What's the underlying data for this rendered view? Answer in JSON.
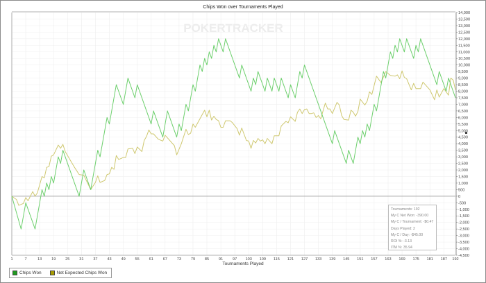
{
  "title": "Chips Won over Tournaments Played",
  "watermark": "POKERTRACKER",
  "chart_data": {
    "type": "line",
    "title": "Chips Won over Tournaments Played",
    "xlabel": "Tournaments Played",
    "ylabel": "",
    "xlim": [
      1,
      192
    ],
    "ylim": [
      -4500,
      14000
    ],
    "grid": true,
    "legend_position": "bottom-left",
    "x_ticks": [
      1,
      7,
      13,
      19,
      25,
      31,
      37,
      43,
      49,
      55,
      61,
      67,
      73,
      79,
      85,
      91,
      97,
      103,
      109,
      115,
      121,
      127,
      133,
      139,
      145,
      151,
      157,
      163,
      169,
      175,
      181,
      187,
      192
    ],
    "y_ticks": [
      "14,000",
      "13,500",
      "13,000",
      "12,500",
      "12,000",
      "11,500",
      "11,000",
      "10,500",
      "10,000",
      "9,500",
      "9,000",
      "8,500",
      "8,000",
      "7,500",
      "7,000",
      "6,500",
      "6,000",
      "5,500",
      "5,000",
      "4,500",
      "4,000",
      "3,500",
      "3,000",
      "2,500",
      "2,000",
      "1,500",
      "1,000",
      "500",
      "0",
      "-500",
      "-1,000",
      "-1,500",
      "-2,000",
      "-2,500",
      "-3,000",
      "-3,500",
      "-4,000",
      "-4,500"
    ],
    "series": [
      {
        "name": "Chips Won",
        "color": "#6ccf6c",
        "legend_color": "#1f9a1f",
        "points": [
          [
            1,
            0
          ],
          [
            5,
            -2500
          ],
          [
            7,
            -500
          ],
          [
            11,
            -2500
          ],
          [
            14,
            500
          ],
          [
            15,
            0
          ],
          [
            16,
            1000
          ],
          [
            17,
            500
          ],
          [
            18,
            1500
          ],
          [
            19,
            1000
          ],
          [
            21,
            3000
          ],
          [
            22,
            2500
          ],
          [
            23,
            3500
          ],
          [
            30,
            0
          ],
          [
            32,
            2000
          ],
          [
            35,
            500
          ],
          [
            38,
            3500
          ],
          [
            39,
            3000
          ],
          [
            42,
            6000
          ],
          [
            43,
            5500
          ],
          [
            46,
            8500
          ],
          [
            49,
            7000
          ],
          [
            51,
            9000
          ],
          [
            54,
            7500
          ],
          [
            55,
            8500
          ],
          [
            61,
            5500
          ],
          [
            62,
            6500
          ],
          [
            66,
            4500
          ],
          [
            68,
            6500
          ],
          [
            72,
            4500
          ],
          [
            73,
            5500
          ],
          [
            74,
            5000
          ],
          [
            76,
            7000
          ],
          [
            77,
            6500
          ],
          [
            79,
            8500
          ],
          [
            80,
            8000
          ],
          [
            82,
            10000
          ],
          [
            83,
            9500
          ],
          [
            84,
            10500
          ],
          [
            85,
            10000
          ],
          [
            86,
            11000
          ],
          [
            87,
            10500
          ],
          [
            88,
            11500
          ],
          [
            89,
            11000
          ],
          [
            90,
            12000
          ],
          [
            92,
            11000
          ],
          [
            93,
            12000
          ],
          [
            99,
            9000
          ],
          [
            100,
            10000
          ],
          [
            104,
            8000
          ],
          [
            105,
            9000
          ],
          [
            106,
            8500
          ],
          [
            107,
            9500
          ],
          [
            110,
            8000
          ],
          [
            111,
            9000
          ],
          [
            113,
            8000
          ],
          [
            114,
            9000
          ],
          [
            116,
            8000
          ],
          [
            117,
            9000
          ],
          [
            120,
            7500
          ],
          [
            121,
            8500
          ],
          [
            123,
            7500
          ],
          [
            125,
            9500
          ],
          [
            126,
            9000
          ],
          [
            127,
            10000
          ],
          [
            139,
            4000
          ],
          [
            140,
            5000
          ],
          [
            145,
            2500
          ],
          [
            146,
            3500
          ],
          [
            148,
            2500
          ],
          [
            150,
            4500
          ],
          [
            151,
            4000
          ],
          [
            152,
            5000
          ],
          [
            153,
            4500
          ],
          [
            154,
            5500
          ],
          [
            155,
            5000
          ],
          [
            157,
            7000
          ],
          [
            158,
            6500
          ],
          [
            161,
            9500
          ],
          [
            162,
            9000
          ],
          [
            164,
            11000
          ],
          [
            165,
            10500
          ],
          [
            166,
            11500
          ],
          [
            167,
            11000
          ],
          [
            168,
            12000
          ],
          [
            170,
            11000
          ],
          [
            171,
            12000
          ],
          [
            174,
            10500
          ],
          [
            175,
            11500
          ],
          [
            176,
            11000
          ],
          [
            177,
            12000
          ],
          [
            184,
            8500
          ],
          [
            185,
            9500
          ],
          [
            188,
            8000
          ],
          [
            189,
            9000
          ],
          [
            192,
            7500
          ]
        ]
      },
      {
        "name": "Net Expected Chips Won",
        "color": "#cfc870",
        "legend_color": "#a89c00",
        "points": [
          [
            1,
            0
          ],
          [
            3,
            -250
          ],
          [
            4,
            -700
          ],
          [
            6,
            -550
          ],
          [
            7,
            -100
          ],
          [
            8,
            -350
          ],
          [
            10,
            350
          ],
          [
            11,
            0
          ],
          [
            12,
            250
          ],
          [
            14,
            1500
          ],
          [
            15,
            1400
          ],
          [
            16,
            2200
          ],
          [
            17,
            2250
          ],
          [
            18,
            3050
          ],
          [
            19,
            3150
          ],
          [
            21,
            3900
          ],
          [
            22,
            3650
          ],
          [
            23,
            3950
          ],
          [
            24,
            3400
          ],
          [
            26,
            2800
          ],
          [
            28,
            2200
          ],
          [
            30,
            1650
          ],
          [
            32,
            1600
          ],
          [
            35,
            500
          ],
          [
            37,
            1050
          ],
          [
            38,
            1550
          ],
          [
            39,
            1050
          ],
          [
            41,
            1200
          ],
          [
            42,
            1650
          ],
          [
            43,
            1700
          ],
          [
            44,
            2200
          ],
          [
            45,
            2050
          ],
          [
            46,
            3100
          ],
          [
            47,
            2800
          ],
          [
            49,
            2950
          ],
          [
            50,
            2950
          ],
          [
            51,
            3600
          ],
          [
            53,
            3650
          ],
          [
            54,
            3250
          ],
          [
            55,
            3750
          ],
          [
            57,
            3400
          ],
          [
            58,
            4250
          ],
          [
            59,
            4550
          ],
          [
            60,
            5050
          ],
          [
            61,
            4750
          ],
          [
            62,
            4750
          ],
          [
            64,
            4350
          ],
          [
            66,
            4200
          ],
          [
            67,
            4650
          ],
          [
            71,
            3850
          ],
          [
            72,
            3150
          ],
          [
            74,
            4000
          ],
          [
            76,
            5100
          ],
          [
            77,
            4700
          ],
          [
            78,
            4800
          ],
          [
            79,
            5500
          ],
          [
            80,
            5250
          ],
          [
            84,
            6550
          ],
          [
            85,
            6050
          ],
          [
            86,
            6550
          ],
          [
            87,
            5800
          ],
          [
            88,
            6100
          ],
          [
            89,
            5850
          ],
          [
            90,
            5750
          ],
          [
            91,
            5250
          ],
          [
            92,
            5250
          ],
          [
            93,
            5750
          ],
          [
            95,
            5750
          ],
          [
            96,
            5600
          ],
          [
            98,
            5150
          ],
          [
            99,
            4650
          ],
          [
            100,
            5200
          ],
          [
            102,
            4250
          ],
          [
            103,
            4200
          ],
          [
            104,
            3650
          ],
          [
            105,
            4250
          ],
          [
            106,
            4050
          ],
          [
            107,
            4400
          ],
          [
            108,
            4200
          ],
          [
            109,
            4300
          ],
          [
            110,
            4000
          ],
          [
            111,
            4400
          ],
          [
            113,
            4000
          ],
          [
            114,
            4600
          ],
          [
            116,
            4600
          ],
          [
            117,
            5350
          ],
          [
            119,
            5700
          ],
          [
            120,
            5600
          ],
          [
            121,
            6050
          ],
          [
            123,
            5700
          ],
          [
            124,
            6400
          ],
          [
            125,
            6650
          ],
          [
            126,
            6300
          ],
          [
            127,
            6600
          ],
          [
            128,
            6650
          ],
          [
            129,
            6300
          ],
          [
            130,
            6300
          ],
          [
            131,
            6350
          ],
          [
            132,
            6000
          ],
          [
            133,
            6150
          ],
          [
            134,
            5900
          ],
          [
            136,
            7100
          ],
          [
            137,
            6650
          ],
          [
            138,
            6650
          ],
          [
            139,
            6300
          ],
          [
            141,
            7150
          ],
          [
            142,
            6950
          ],
          [
            143,
            6150
          ],
          [
            144,
            5850
          ],
          [
            146,
            5800
          ],
          [
            147,
            6550
          ],
          [
            148,
            6400
          ],
          [
            149,
            6100
          ],
          [
            150,
            6450
          ],
          [
            151,
            7400
          ],
          [
            153,
            6950
          ],
          [
            154,
            7250
          ],
          [
            155,
            7950
          ],
          [
            156,
            7750
          ],
          [
            158,
            9150
          ],
          [
            160,
            8650
          ],
          [
            162,
            9500
          ],
          [
            164,
            9200
          ],
          [
            166,
            9150
          ],
          [
            167,
            9250
          ],
          [
            168,
            8950
          ],
          [
            169,
            9550
          ],
          [
            170,
            9050
          ],
          [
            171,
            8950
          ],
          [
            173,
            8100
          ],
          [
            174,
            8600
          ],
          [
            175,
            8200
          ],
          [
            177,
            8200
          ],
          [
            178,
            8700
          ],
          [
            181,
            8100
          ],
          [
            183,
            7350
          ],
          [
            184,
            8100
          ],
          [
            185,
            7550
          ],
          [
            187,
            8200
          ],
          [
            189,
            7700
          ],
          [
            190,
            9000
          ],
          [
            191,
            8850
          ],
          [
            192,
            8100
          ]
        ]
      }
    ]
  },
  "legend": {
    "items": [
      {
        "label": "Chips Won"
      },
      {
        "label": "Net Expected Chips Won"
      }
    ]
  },
  "stats": {
    "lines": [
      "Tournaments: 192",
      "My C Net Won: -390.00",
      "My C / Tournament: -$0.47",
      "Days Played: 2",
      "My C / Day: -$45.00",
      "ROI %: -3.13",
      "ITM %: 35.94"
    ]
  }
}
